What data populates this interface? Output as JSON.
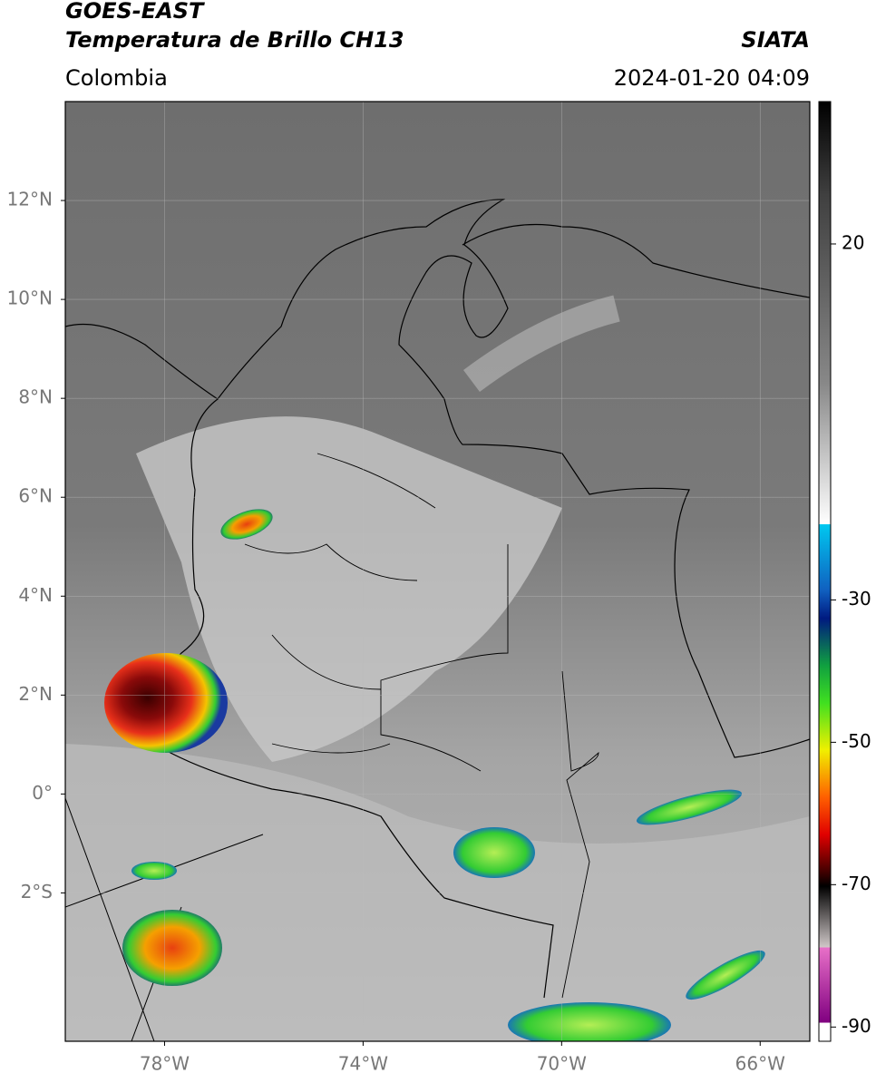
{
  "header": {
    "title": "GOES-EAST",
    "subtitle": "Temperatura de Brillo CH13",
    "source": "SIATA",
    "region": "Colombia",
    "datetime": "2024-01-20 04:09"
  },
  "map": {
    "xlim": [
      -80,
      -65
    ],
    "ylim": [
      -5,
      14
    ],
    "xticks": [
      {
        "value": -78,
        "label": "78°W"
      },
      {
        "value": -74,
        "label": "74°W"
      },
      {
        "value": -70,
        "label": "70°W"
      },
      {
        "value": -66,
        "label": "66°W"
      }
    ],
    "yticks": [
      {
        "value": 12,
        "label": "12°N"
      },
      {
        "value": 10,
        "label": "10°N"
      },
      {
        "value": 8,
        "label": "8°N"
      },
      {
        "value": 6,
        "label": "6°N"
      },
      {
        "value": 4,
        "label": "4°N"
      },
      {
        "value": 2,
        "label": "2°N"
      },
      {
        "value": 0,
        "label": "0°"
      },
      {
        "value": -2,
        "label": "2°S"
      }
    ],
    "grid": true
  },
  "colorbar": {
    "lim": [
      -92,
      40
    ],
    "ticks": [
      20,
      -30,
      -50,
      -70,
      -90
    ]
  }
}
